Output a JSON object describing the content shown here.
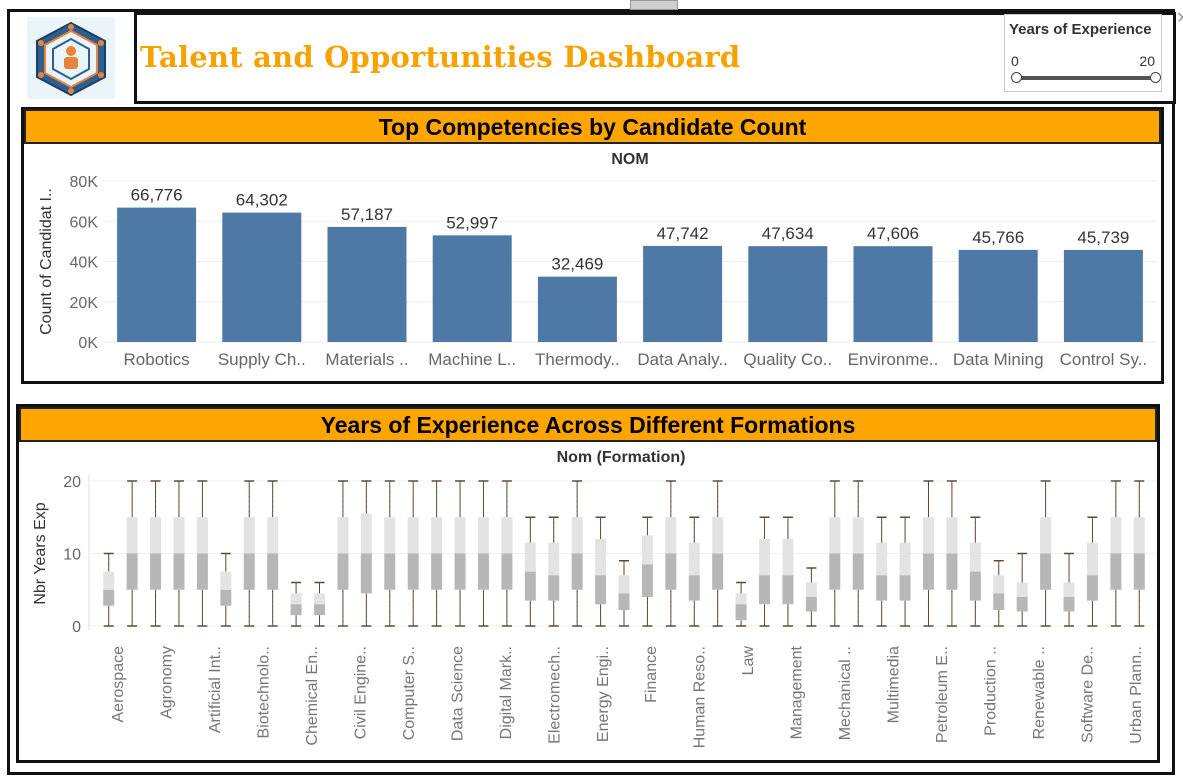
{
  "header": {
    "title": "Talent and Opportunities Dashboard",
    "logo": "network-hexagon-logo"
  },
  "filter": {
    "title": "Years of Experience",
    "min": "0",
    "max": "20",
    "range_low": 0,
    "range_high": 20
  },
  "colors": {
    "accent": "#FFA500",
    "title": "#F6A200",
    "bar": "#4E79A7",
    "box_dark": "#B7B7B7",
    "box_light": "#E3E3E3",
    "whisker": "#5C4A3A",
    "points": "#E0A94A"
  },
  "chart_data": [
    {
      "type": "bar",
      "title": "Top Competencies by Candidate Count",
      "subtitle": "NOM",
      "ylabel": "Count of Candidat I..",
      "yticks": [
        "0K",
        "20K",
        "40K",
        "60K",
        "80K"
      ],
      "ylim": [
        0,
        80000
      ],
      "categories": [
        "Robotics",
        "Supply Ch..",
        "Materials ..",
        "Machine L..",
        "Thermody..",
        "Data Analy..",
        "Quality Co..",
        "Environme..",
        "Data Mining",
        "Control Sy.."
      ],
      "values": [
        66776,
        64302,
        57187,
        52997,
        32469,
        47742,
        47634,
        47606,
        45766,
        45739
      ],
      "labels": [
        "66,776",
        "64,302",
        "57,187",
        "52,997",
        "32,469",
        "47,742",
        "47,634",
        "47,606",
        "45,766",
        "45,739"
      ]
    },
    {
      "type": "box",
      "title": "Years of Experience Across Different Formations",
      "subtitle": "Nom (Formation)",
      "ylabel": "Nbr Years Exp",
      "yticks": [
        "0",
        "10",
        "20"
      ],
      "ylim": [
        0,
        20
      ],
      "categories": [
        "Aerospace",
        "Agronomy",
        "Artificial Int..",
        "Biotechnolo..",
        "Chemical En..",
        "Civil Engine..",
        "Computer S..",
        "Data Science",
        "Digital Mark..",
        "Electromech..",
        "Energy Engi..",
        "Finance",
        "Human Reso..",
        "Law",
        "Management",
        "Mechanical ..",
        "Multimedia",
        "Petroleum E..",
        "Production ..",
        "Renewable ..",
        "Software De..",
        "Urban Plann.."
      ],
      "boxes": [
        {
          "min": 0,
          "q1": 2.8,
          "median": 5,
          "q3": 7.5,
          "max": 10
        },
        {
          "min": 0,
          "q1": 5,
          "median": 10,
          "q3": 15,
          "max": 20
        },
        {
          "min": 0,
          "q1": 5,
          "median": 10,
          "q3": 15,
          "max": 20
        },
        {
          "min": 0,
          "q1": 5,
          "median": 10,
          "q3": 15,
          "max": 20
        },
        {
          "min": 0,
          "q1": 5,
          "median": 10,
          "q3": 15,
          "max": 20
        },
        {
          "min": 0,
          "q1": 2.8,
          "median": 5,
          "q3": 7.5,
          "max": 10
        },
        {
          "min": 0,
          "q1": 5,
          "median": 10,
          "q3": 15,
          "max": 20
        },
        {
          "min": 0,
          "q1": 5,
          "median": 10,
          "q3": 15,
          "max": 20
        },
        {
          "min": 0,
          "q1": 1.5,
          "median": 3,
          "q3": 4.5,
          "max": 6
        },
        {
          "min": 0,
          "q1": 1.5,
          "median": 3,
          "q3": 4.5,
          "max": 6
        },
        {
          "min": 0,
          "q1": 5,
          "median": 10,
          "q3": 15,
          "max": 20
        },
        {
          "min": 0,
          "q1": 4.5,
          "median": 10,
          "q3": 15.5,
          "max": 20
        },
        {
          "min": 0,
          "q1": 5,
          "median": 10,
          "q3": 15,
          "max": 20
        },
        {
          "min": 0,
          "q1": 5,
          "median": 10,
          "q3": 15,
          "max": 20
        },
        {
          "min": 0,
          "q1": 5,
          "median": 10,
          "q3": 15,
          "max": 20
        },
        {
          "min": 0,
          "q1": 5,
          "median": 10,
          "q3": 15,
          "max": 20
        },
        {
          "min": 0,
          "q1": 5,
          "median": 10,
          "q3": 15,
          "max": 20
        },
        {
          "min": 0,
          "q1": 5,
          "median": 10,
          "q3": 15,
          "max": 20
        },
        {
          "min": 0,
          "q1": 3.5,
          "median": 7.5,
          "q3": 11.5,
          "max": 15
        },
        {
          "min": 0,
          "q1": 3.5,
          "median": 7,
          "q3": 11.5,
          "max": 15
        },
        {
          "min": 0,
          "q1": 5,
          "median": 10,
          "q3": 15,
          "max": 20
        },
        {
          "min": 0,
          "q1": 3,
          "median": 7,
          "q3": 12,
          "max": 15
        },
        {
          "min": 0,
          "q1": 2.2,
          "median": 4.5,
          "q3": 7,
          "max": 9
        },
        {
          "min": 0,
          "q1": 4,
          "median": 8.5,
          "q3": 12.5,
          "max": 15
        },
        {
          "min": 0,
          "q1": 5,
          "median": 10,
          "q3": 15,
          "max": 20
        },
        {
          "min": 0,
          "q1": 3.5,
          "median": 7,
          "q3": 11.5,
          "max": 15
        },
        {
          "min": 0,
          "q1": 5,
          "median": 10,
          "q3": 15,
          "max": 20
        },
        {
          "min": 0,
          "q1": 0.8,
          "median": 3,
          "q3": 4.5,
          "max": 6
        },
        {
          "min": 0,
          "q1": 3,
          "median": 7,
          "q3": 12,
          "max": 15
        },
        {
          "min": 0,
          "q1": 3,
          "median": 7,
          "q3": 12,
          "max": 15
        },
        {
          "min": 0,
          "q1": 2,
          "median": 4,
          "q3": 6,
          "max": 8
        },
        {
          "min": 0,
          "q1": 5,
          "median": 10,
          "q3": 15,
          "max": 20
        },
        {
          "min": 0,
          "q1": 5,
          "median": 10,
          "q3": 15,
          "max": 20
        },
        {
          "min": 0,
          "q1": 3.5,
          "median": 7,
          "q3": 11.5,
          "max": 15
        },
        {
          "min": 0,
          "q1": 3.5,
          "median": 7,
          "q3": 11.5,
          "max": 15
        },
        {
          "min": 0,
          "q1": 5,
          "median": 10,
          "q3": 15,
          "max": 20
        },
        {
          "min": 0,
          "q1": 5,
          "median": 10,
          "q3": 15,
          "max": 20
        },
        {
          "min": 0,
          "q1": 3.5,
          "median": 7.5,
          "q3": 11.5,
          "max": 15
        },
        {
          "min": 0,
          "q1": 2.2,
          "median": 4.5,
          "q3": 7,
          "max": 9
        },
        {
          "min": 0,
          "q1": 2,
          "median": 4,
          "q3": 6,
          "max": 10
        },
        {
          "min": 0,
          "q1": 5,
          "median": 10,
          "q3": 15,
          "max": 20
        },
        {
          "min": 0,
          "q1": 2,
          "median": 4,
          "q3": 6,
          "max": 10
        },
        {
          "min": 0,
          "q1": 3.5,
          "median": 7,
          "q3": 11.5,
          "max": 15
        },
        {
          "min": 0,
          "q1": 5,
          "median": 10,
          "q3": 15,
          "max": 20
        },
        {
          "min": 0,
          "q1": 5,
          "median": 10,
          "q3": 15,
          "max": 20
        }
      ]
    }
  ]
}
